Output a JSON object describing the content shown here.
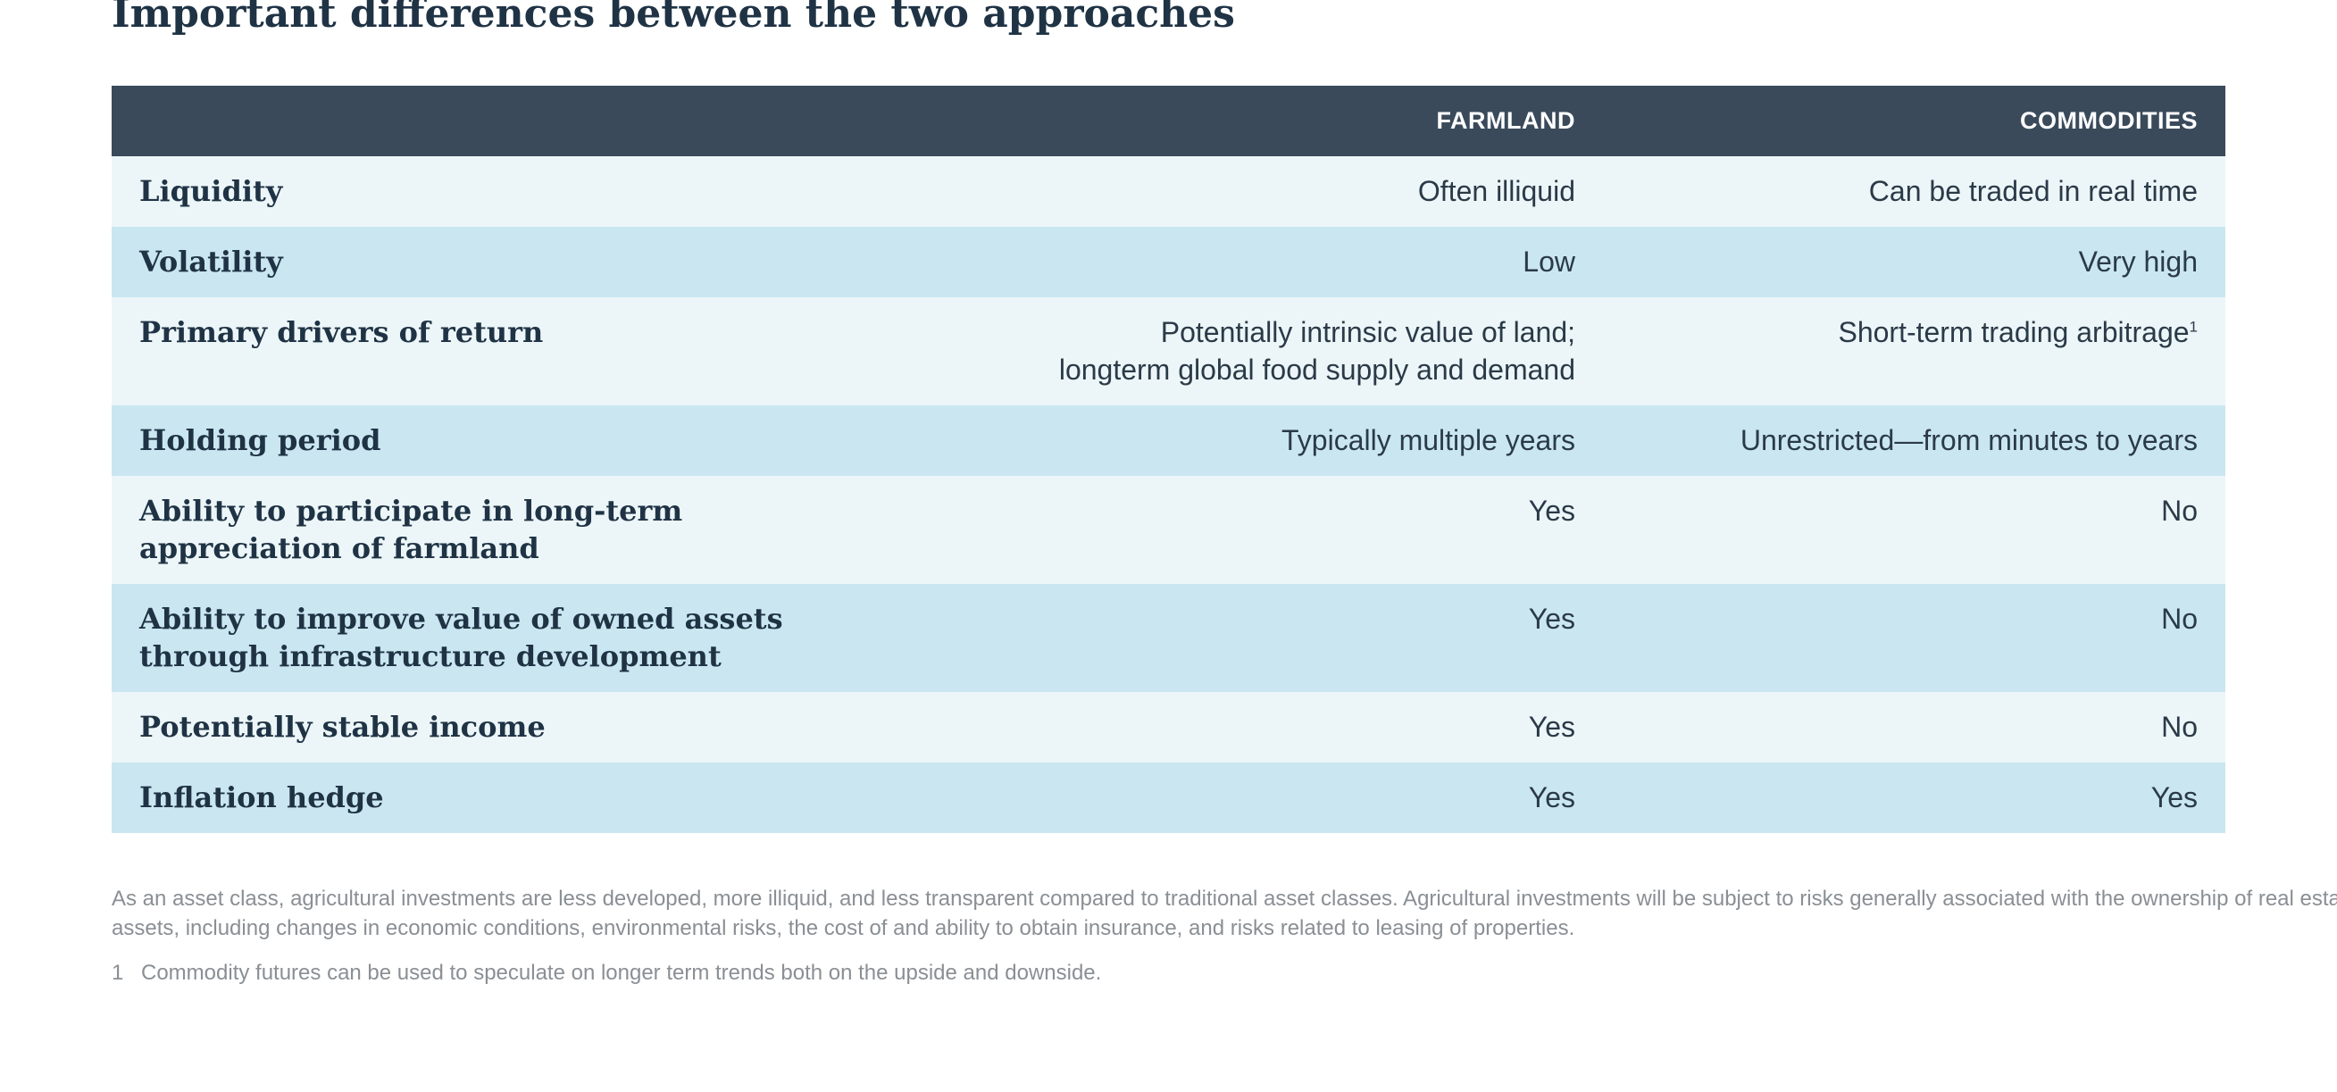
{
  "page": {
    "title": "Important differences between the two approaches"
  },
  "table": {
    "headers": {
      "label": "",
      "farmland": "FARMLAND",
      "commodities": "COMMODITIES"
    },
    "rows": [
      {
        "label": [
          "Liquidity"
        ],
        "farmland": [
          "Often illiquid"
        ],
        "commodities": [
          "Can be traded in real time"
        ],
        "commodities_sup": ""
      },
      {
        "label": [
          "Volatility"
        ],
        "farmland": [
          "Low"
        ],
        "commodities": [
          "Very high"
        ],
        "commodities_sup": ""
      },
      {
        "label": [
          "Primary drivers of return"
        ],
        "farmland": [
          "Potentially intrinsic value of land;",
          "longterm global food supply and demand"
        ],
        "commodities": [
          "Short-term trading arbitrage"
        ],
        "commodities_sup": "1"
      },
      {
        "label": [
          "Holding period"
        ],
        "farmland": [
          "Typically multiple years"
        ],
        "commodities": [
          "Unrestricted—from minutes to years"
        ],
        "commodities_sup": ""
      },
      {
        "label": [
          "Ability to participate in long-term",
          "appreciation of farmland"
        ],
        "farmland": [
          "Yes"
        ],
        "commodities": [
          "No"
        ],
        "commodities_sup": ""
      },
      {
        "label": [
          "Ability to improve value of owned assets",
          "through infrastructure development"
        ],
        "farmland": [
          "Yes"
        ],
        "commodities": [
          "No"
        ],
        "commodities_sup": ""
      },
      {
        "label": [
          "Potentially stable income"
        ],
        "farmland": [
          "Yes"
        ],
        "commodities": [
          "No"
        ],
        "commodities_sup": ""
      },
      {
        "label": [
          "Inflation hedge"
        ],
        "farmland": [
          "Yes"
        ],
        "commodities": [
          "Yes"
        ],
        "commodities_sup": ""
      }
    ]
  },
  "footnotes": {
    "disclaimer": [
      "As an asset class, agricultural investments are less developed, more illiquid, and less transparent compared to traditional asset classes. Agricultural investments will be subject to risks generally associated with the ownership of real estate-related",
      "assets, including changes in economic conditions, environmental risks, the cost of and ability to obtain insurance, and risks related to leasing of properties."
    ],
    "notes": [
      {
        "number": "1",
        "text": "Commodity futures can be used to speculate on longer term trends both on the upside and downside."
      }
    ]
  },
  "colors": {
    "header_bg": "#3a4a5b",
    "row_light": "#ecf6f8",
    "row_dark": "#cae7f1",
    "title_text": "#1f3345",
    "footnote_text": "#8a8f94"
  }
}
